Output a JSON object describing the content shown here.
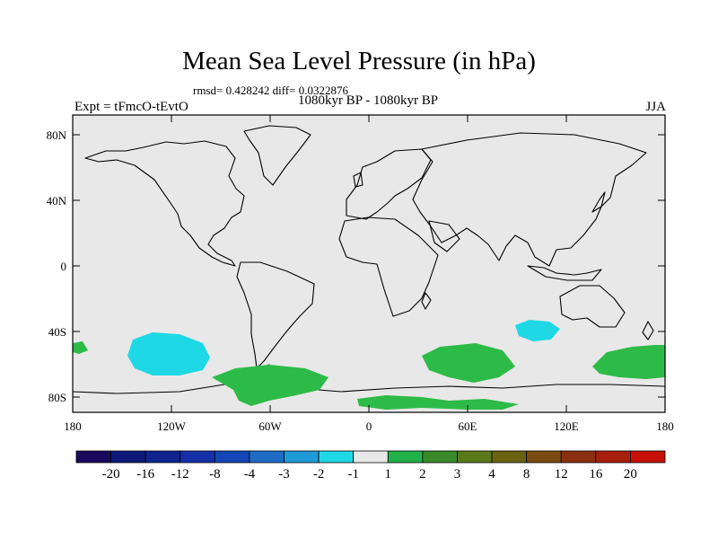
{
  "title": "Mean Sea Level Pressure (in hPa)",
  "stats": "rmsd= 0.428242 diff= 0.0322876",
  "subtitle": "1080kyr BP - 1080kyr BP",
  "expt": "Expt = tFmcO-tEvtO",
  "season": "JJA",
  "lat_ticks": [
    "80N",
    "40N",
    "0",
    "40S",
    "80S"
  ],
  "lon_ticks": [
    "180",
    "120W",
    "60W",
    "0",
    "60E",
    "120E",
    "180"
  ],
  "colorbar": {
    "labels": [
      "-20",
      "-16",
      "-12",
      "-8",
      "-4",
      "-3",
      "-2",
      "-1",
      "1",
      "2",
      "3",
      "4",
      "8",
      "12",
      "16",
      "20"
    ],
    "colors": [
      "#1a0a5e",
      "#0d1a7a",
      "#10248f",
      "#1430a8",
      "#1446b8",
      "#1e6cc8",
      "#1e9ad8",
      "#1fd8e6",
      "#e8e8e8",
      "#22b24a",
      "#3a8a2a",
      "#5a7a1a",
      "#6a6210",
      "#7a4a10",
      "#8a3010",
      "#a8200c",
      "#c81008"
    ]
  },
  "colors": {
    "ocean_bg": "#e8e8e8",
    "positive": "#2dbb47",
    "negative": "#1fd8e6"
  },
  "anomalies": [
    {
      "sign": "negative",
      "region": "South Pacific near 140W 50S"
    },
    {
      "sign": "negative",
      "region": "Indian Ocean near 100E 40S"
    },
    {
      "sign": "positive",
      "region": "Southern Ocean near 45W 65S"
    },
    {
      "sign": "positive",
      "region": "Southern Ocean near 60E 55S"
    },
    {
      "sign": "positive",
      "region": "Southern Ocean near 150E 55S"
    },
    {
      "sign": "positive",
      "region": "Antarctic coast near 30E 75S"
    },
    {
      "sign": "positive",
      "region": "South Pacific near 175W 50S"
    }
  ]
}
